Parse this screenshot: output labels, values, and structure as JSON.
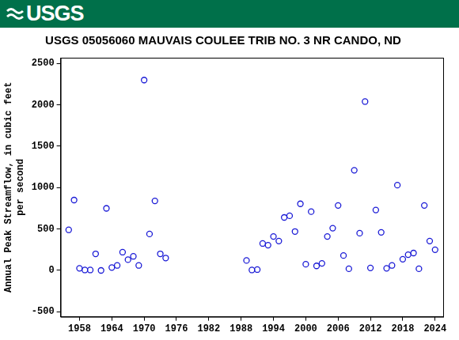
{
  "header": {
    "logo": "USGS"
  },
  "chart_data": {
    "type": "scatter",
    "title": "USGS 05056060 MAUVAIS COULEE TRIB NO. 3 NR CANDO, ND",
    "ylabel": [
      "Annual Peak Streamflow, in cubic feet",
      "per second"
    ],
    "x": [
      1956,
      1957,
      1958,
      1959,
      1960,
      1961,
      1962,
      1963,
      1964,
      1965,
      1966,
      1967,
      1968,
      1969,
      1970,
      1971,
      1972,
      1973,
      1974,
      1989,
      1990,
      1991,
      1992,
      1993,
      1994,
      1995,
      1996,
      1997,
      1998,
      1999,
      2000,
      2001,
      2002,
      2003,
      2004,
      2005,
      2006,
      2007,
      2008,
      2009,
      2010,
      2011,
      2012,
      2013,
      2014,
      2015,
      2016,
      2017,
      2018,
      2019,
      2020,
      2021,
      2022,
      2023,
      2024
    ],
    "values": [
      490,
      850,
      25,
      5,
      5,
      200,
      0,
      750,
      35,
      60,
      220,
      130,
      170,
      60,
      2300,
      440,
      840,
      200,
      150,
      120,
      5,
      10,
      325,
      305,
      410,
      355,
      640,
      660,
      470,
      805,
      75,
      710,
      55,
      85,
      410,
      510,
      785,
      180,
      20,
      1210,
      450,
      2040,
      30,
      730,
      460,
      25,
      60,
      1030,
      135,
      190,
      210,
      20,
      785,
      355,
      250
    ],
    "color": "#1a1ad6",
    "marker": "circle_open",
    "xlim": [
      1954.5,
      2025.5
    ],
    "xticks": [
      1958,
      1964,
      1970,
      1976,
      1982,
      1988,
      1994,
      2000,
      2006,
      2012,
      2018,
      2024
    ],
    "ylim": [
      -560,
      2570
    ],
    "yticks": [
      -500,
      0,
      500,
      1000,
      1500,
      2000,
      2500
    ],
    "grid": false
  }
}
